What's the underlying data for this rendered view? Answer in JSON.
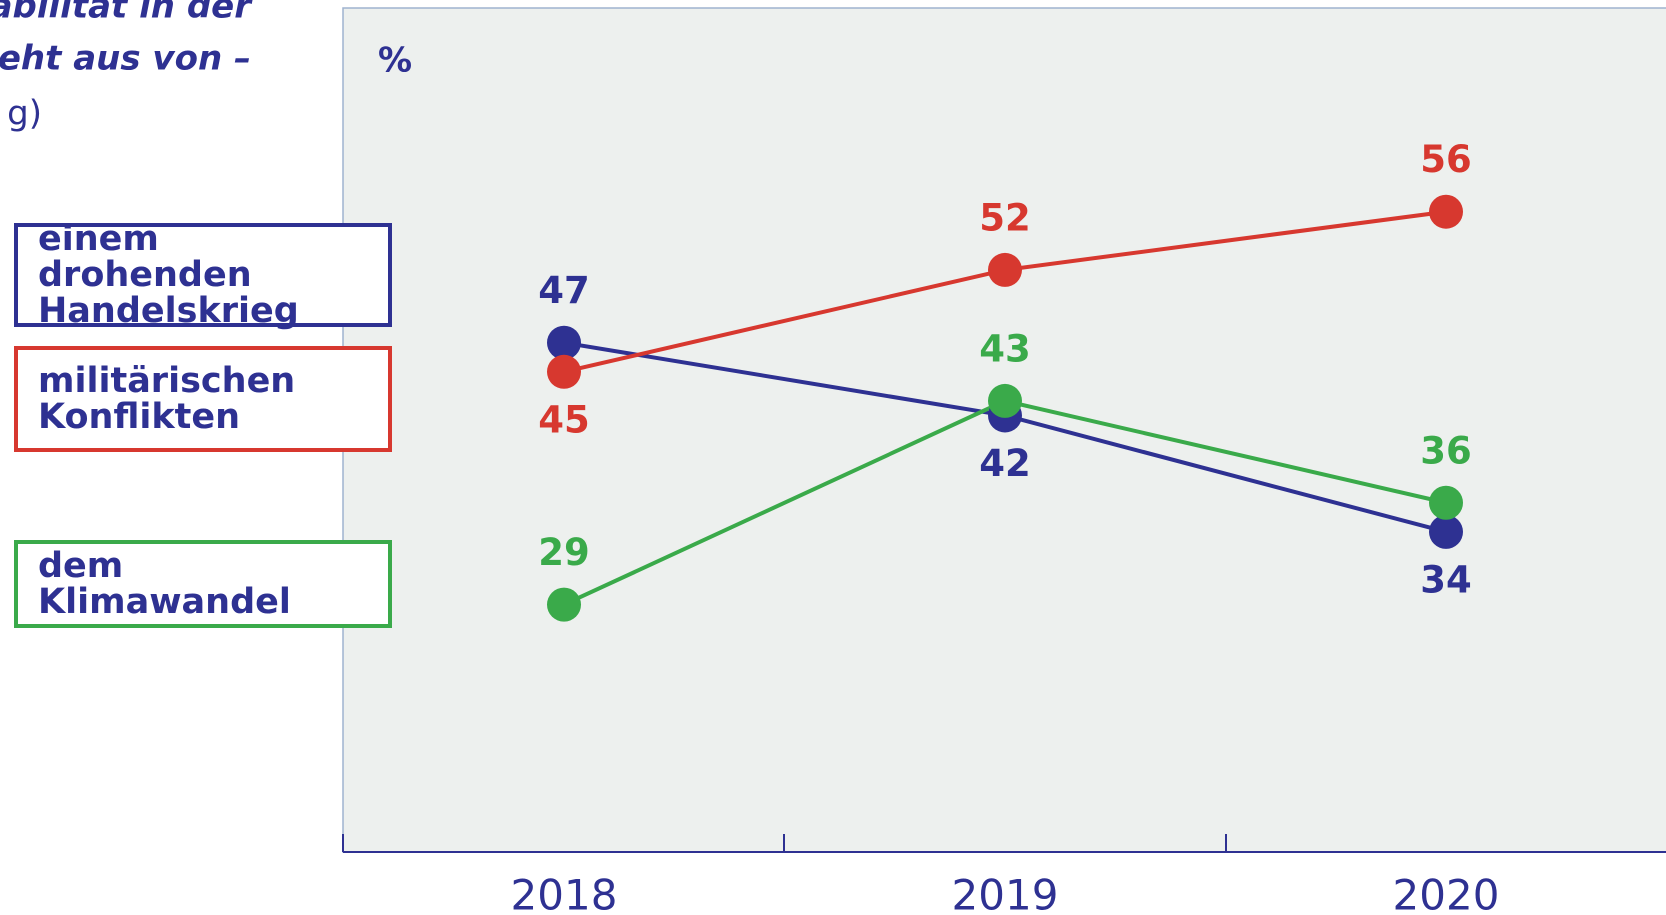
{
  "chart_data": {
    "type": "line",
    "title_lines": [
      "abilität in der",
      "eht aus von –",
      "g)"
    ],
    "y_label": "%",
    "categories": [
      "2018",
      "2019",
      "2020"
    ],
    "ylim": [
      12,
      70
    ],
    "series": [
      {
        "name": "einem drohenden Handelskrieg",
        "color": "#2e3192",
        "values": [
          47,
          42,
          34
        ]
      },
      {
        "name": "militärischen Konflikten",
        "color": "#d7382f",
        "values": [
          45,
          52,
          56
        ]
      },
      {
        "name": "dem Klimawandel",
        "color": "#3aaa4a",
        "values": [
          29,
          43,
          36
        ]
      }
    ]
  }
}
